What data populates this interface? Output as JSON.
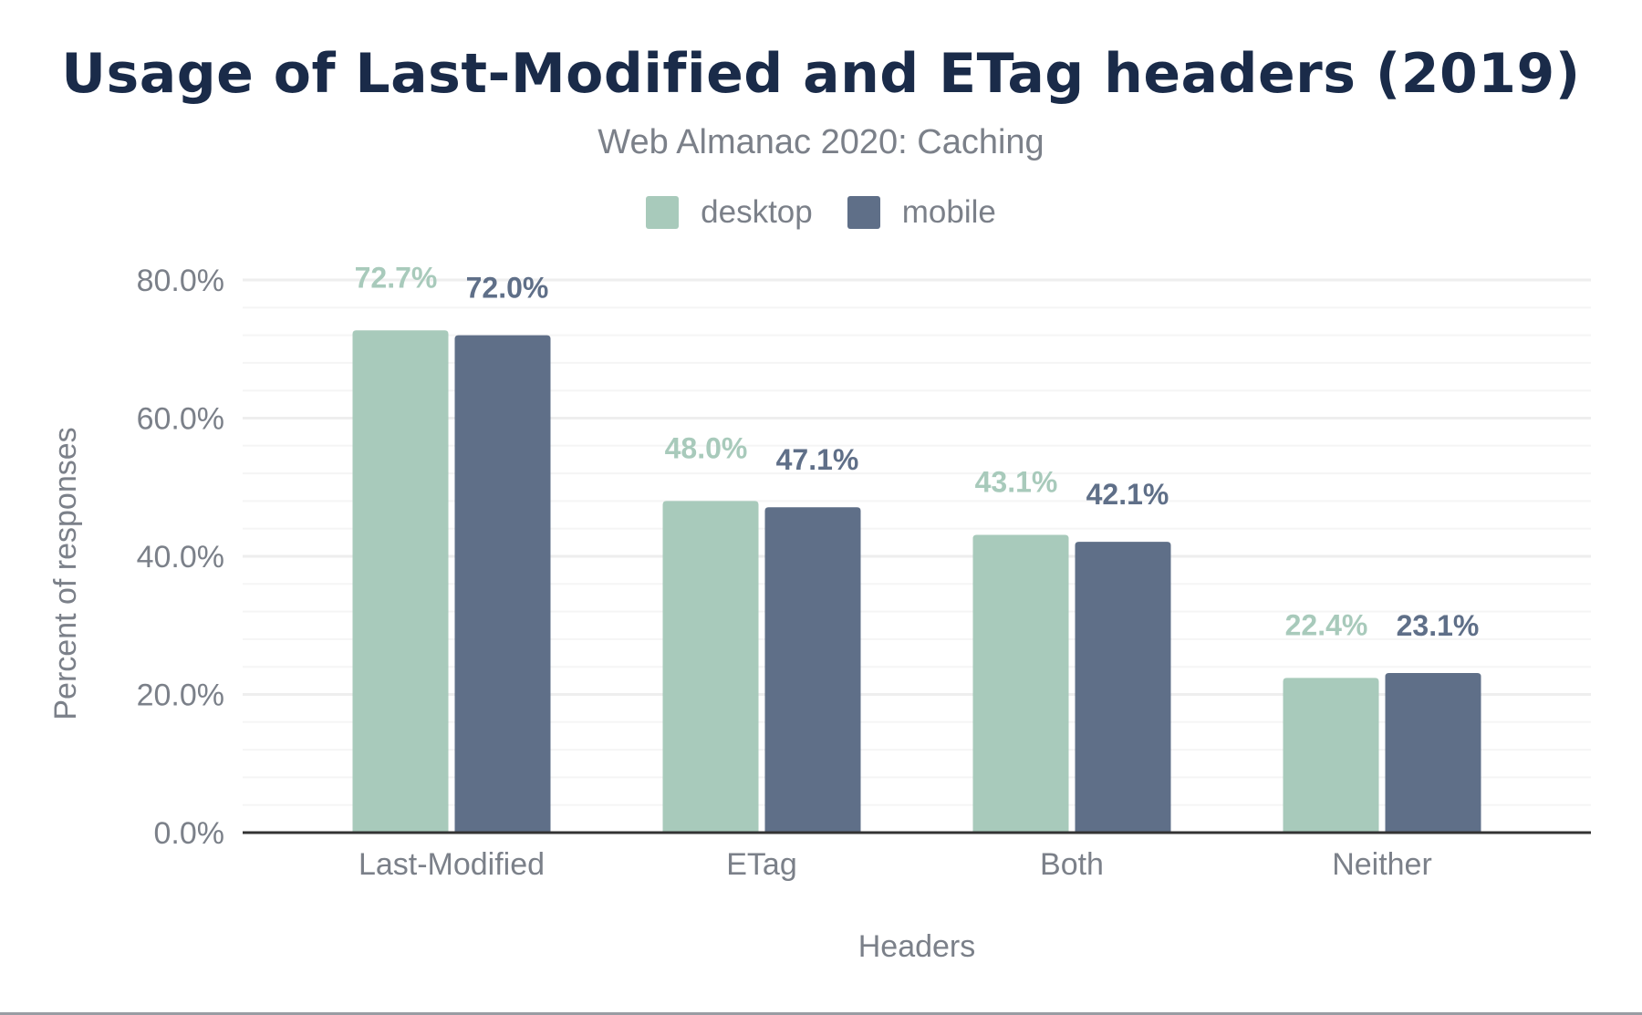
{
  "chart_data": {
    "type": "bar",
    "title": "Usage of Last-Modified and ETag headers (2019)",
    "subtitle": "Web Almanac 2020: Caching",
    "xlabel": "Headers",
    "ylabel": "Percent of responses",
    "categories": [
      "Last-Modified",
      "ETag",
      "Both",
      "Neither"
    ],
    "series": [
      {
        "name": "desktop",
        "color": "#a8cabb",
        "values": [
          72.7,
          48.0,
          43.1,
          22.4
        ],
        "labels": [
          "72.7%",
          "48.0%",
          "43.1%",
          "22.4%"
        ]
      },
      {
        "name": "mobile",
        "color": "#5f6f88",
        "values": [
          72.0,
          47.1,
          42.1,
          23.1
        ],
        "labels": [
          "72.0%",
          "47.1%",
          "42.1%",
          "23.1%"
        ]
      }
    ],
    "ylim": [
      0,
      80
    ],
    "yticks": [
      "0.0%",
      "20.0%",
      "40.0%",
      "60.0%",
      "80.0%"
    ],
    "grid": true,
    "legend": "top-center"
  }
}
